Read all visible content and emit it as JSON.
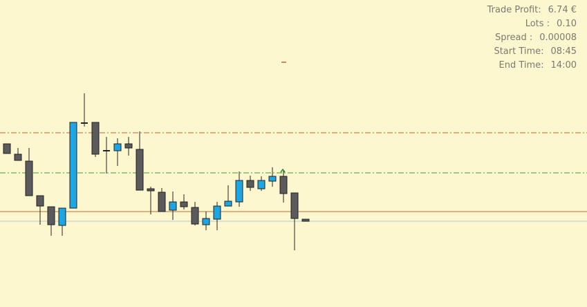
{
  "chart_data": {
    "type": "candlestick",
    "open": [
      236,
      221,
      211,
      161,
      145,
      118,
      143,
      266,
      267,
      226,
      226,
      236,
      228,
      171,
      166,
      140,
      152,
      144,
      119,
      127,
      146,
      152,
      183,
      171,
      182,
      189,
      165,
      127
    ],
    "high": [
      236,
      230,
      230,
      161,
      145,
      143,
      267,
      309,
      267,
      246,
      244,
      246,
      254,
      174,
      172,
      167,
      163,
      152,
      138,
      152,
      176,
      196,
      190,
      189,
      202,
      197,
      165,
      127
    ],
    "low": [
      222,
      212,
      161,
      119,
      103,
      103,
      143,
      261,
      217,
      193,
      204,
      219,
      169,
      134,
      138,
      126,
      141,
      118,
      111,
      111,
      146,
      145,
      168,
      168,
      174,
      151,
      82,
      124
    ],
    "close": [
      222,
      212,
      161,
      146,
      119,
      143,
      267,
      266,
      221,
      226,
      236,
      230,
      169,
      168,
      138,
      152,
      145,
      120,
      128,
      146,
      153,
      183,
      173,
      183,
      189,
      164,
      128,
      124
    ],
    "up_color": "#1ea5e3",
    "down_color": "#5b5b5b",
    "ylim": [
      0,
      444
    ],
    "levels": [
      {
        "value": 252,
        "color": "#c0603a",
        "style": "dashdot"
      },
      {
        "value": 194,
        "color": "#3a9a3a",
        "style": "dashdot"
      },
      {
        "value": 138,
        "color": "#c0703a",
        "style": "solid"
      },
      {
        "value": 124,
        "color": "#b9c9d6",
        "style": "solid"
      }
    ]
  },
  "info_panel": {
    "rows": [
      [
        "Trade Profit:",
        "6.74 €"
      ],
      [
        "Lots :",
        "0.10"
      ],
      [
        "Spread :",
        "0.00008"
      ],
      [
        "Start Time:",
        "08:45"
      ],
      [
        "End Time:",
        "14:00"
      ]
    ]
  }
}
